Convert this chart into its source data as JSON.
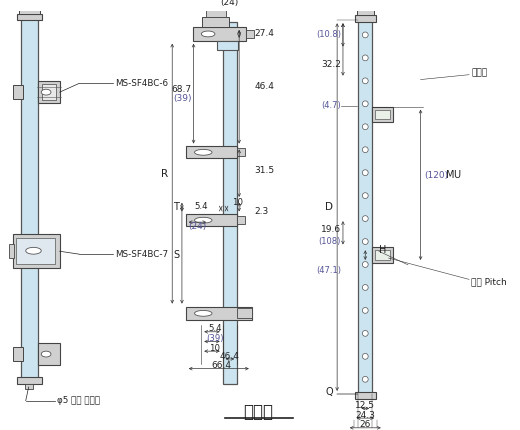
{
  "title": "투광기",
  "bg_color": "#ffffff",
  "light_blue": "#cce4ef",
  "gray_fill": "#d0d0d0",
  "dark": "#222222",
  "dim_color": "#333333",
  "labels_left": {
    "ms6": "MS-SF4BC-6",
    "ms7": "MS-SF4BC-7",
    "cable": "φ5 회색 케이블"
  },
  "dims_right": {
    "kw": "검줄폭",
    "gp": "광축 Pitch"
  }
}
